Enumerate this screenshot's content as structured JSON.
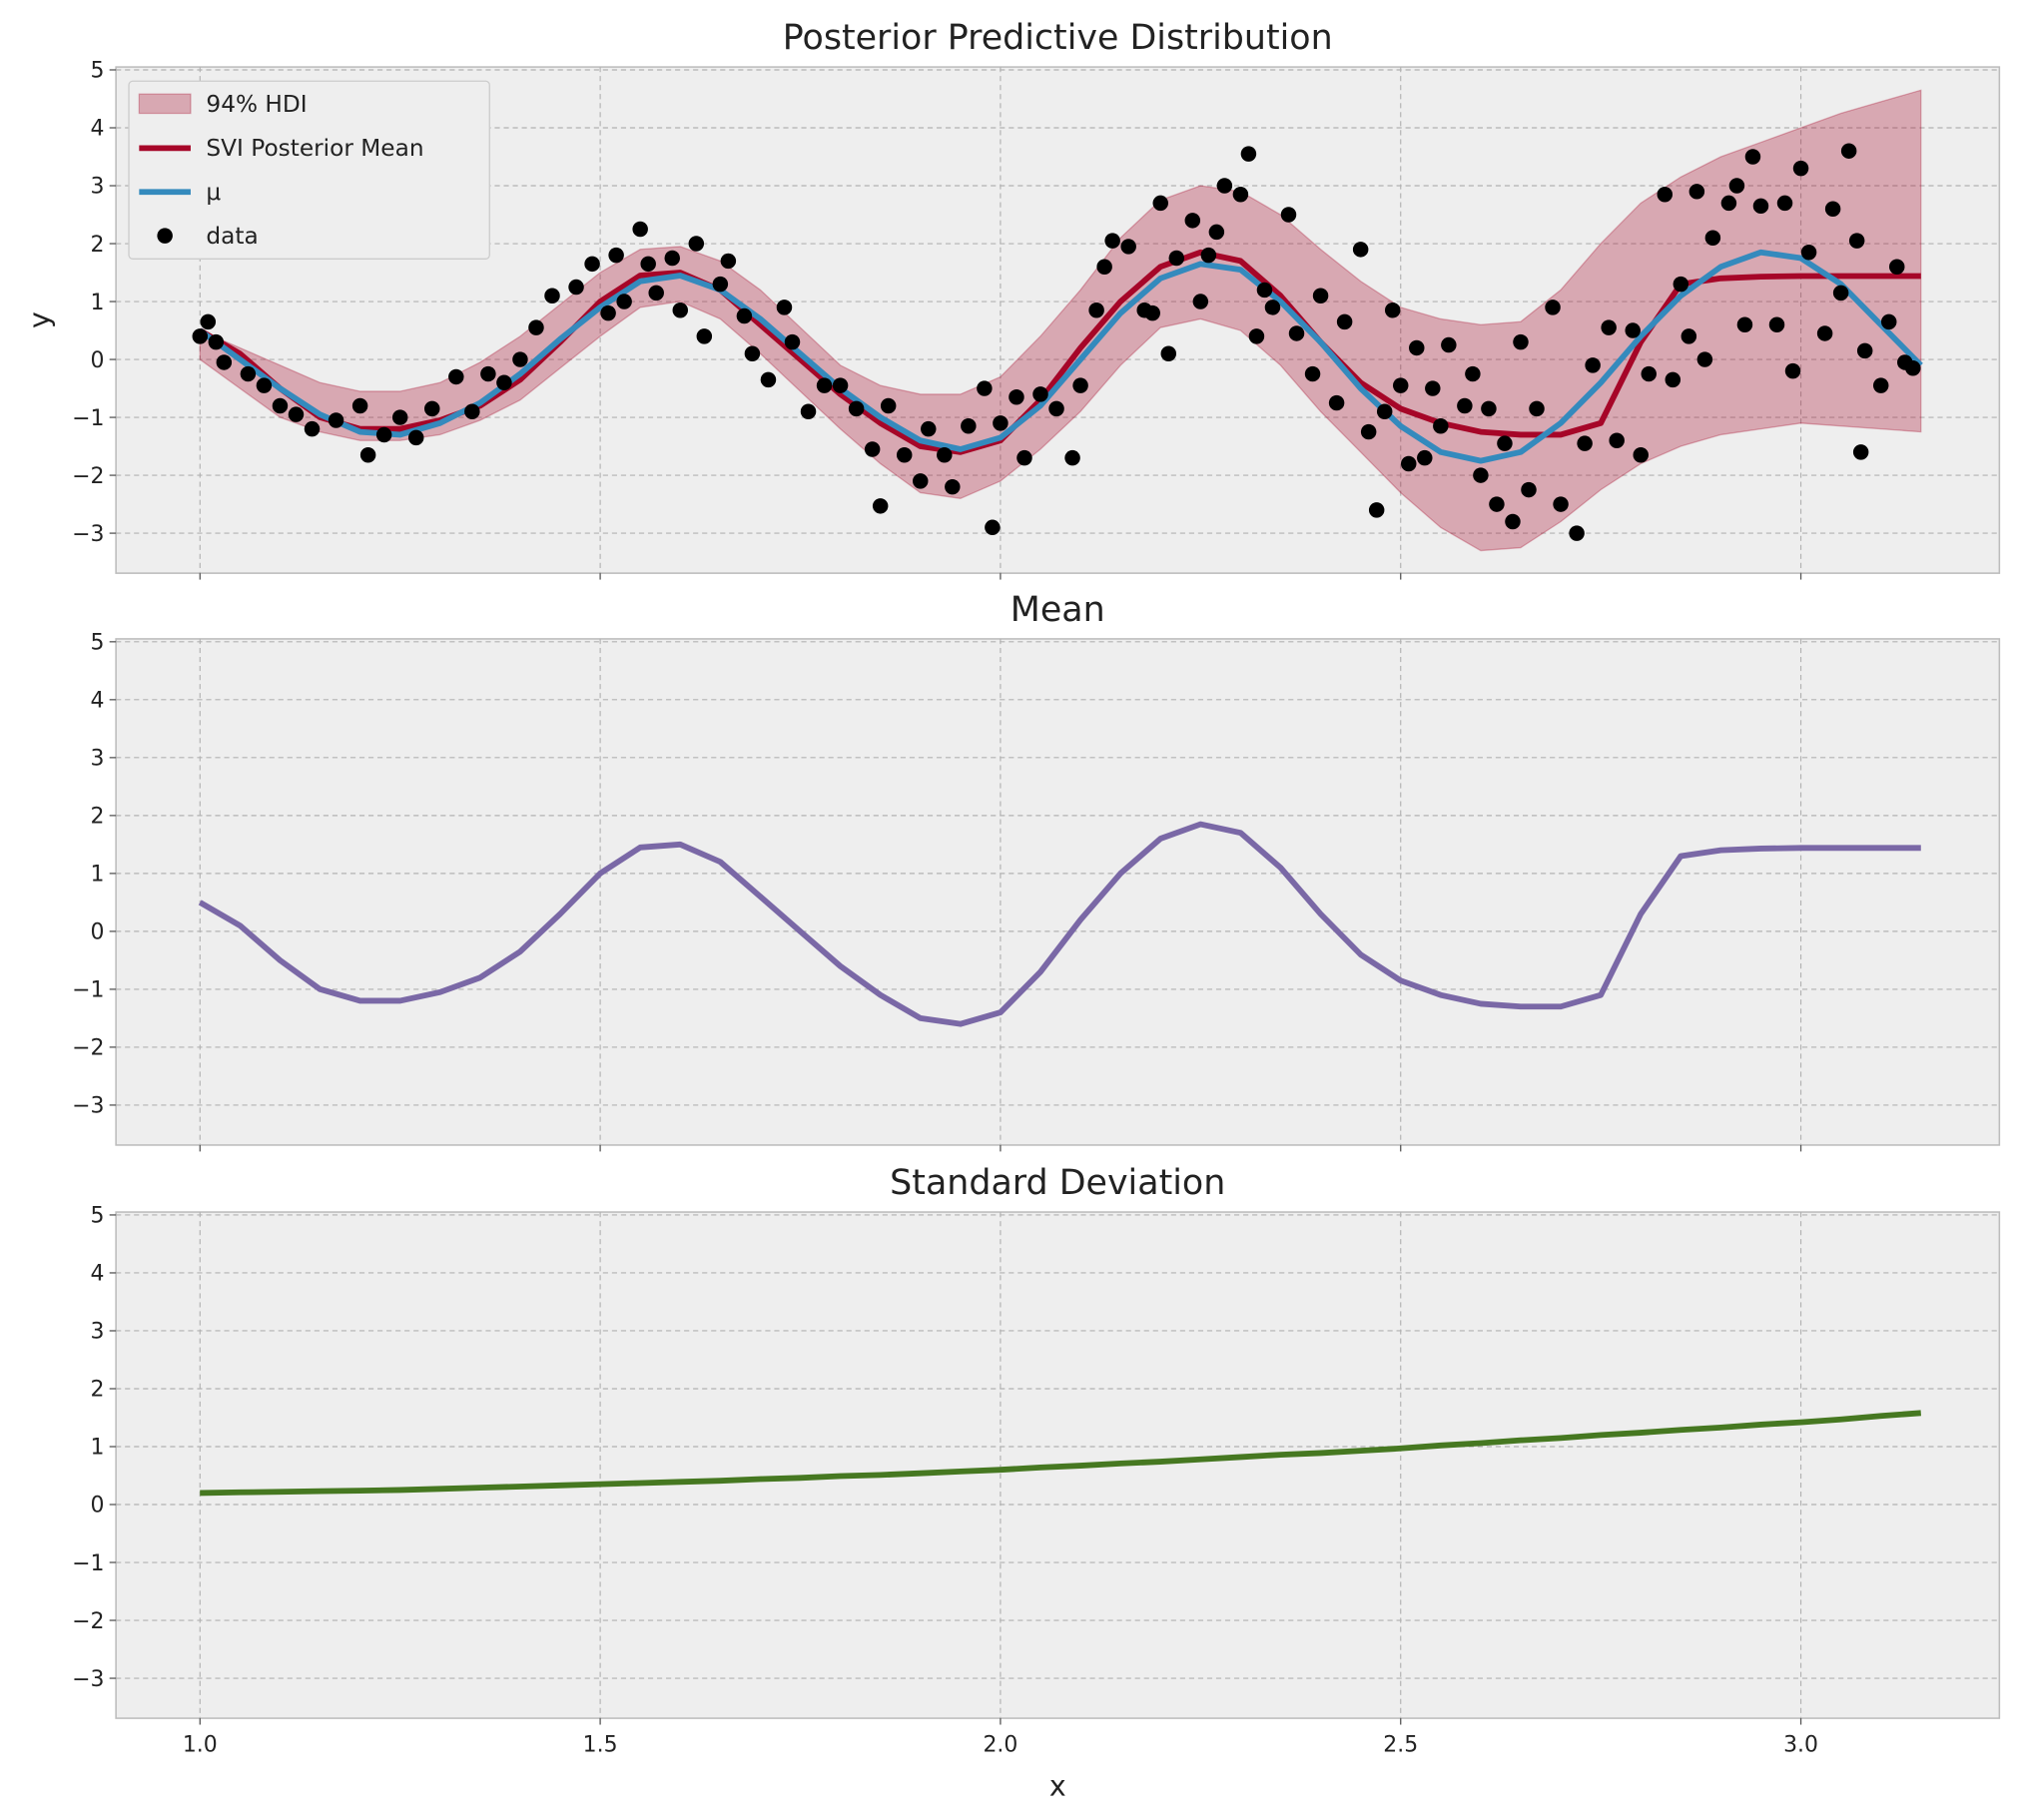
{
  "chart_data": [
    {
      "type": "line",
      "title": "Posterior Predictive Distribution",
      "y_label": "y",
      "xlim": [
        0.895,
        3.248
      ],
      "ylim": [
        -3.69,
        5.05
      ],
      "xticks": [
        1.0,
        1.5,
        2.0,
        2.5,
        3.0
      ],
      "yticks": [
        {
          "value": -3,
          "label": "−3"
        },
        {
          "value": -2,
          "label": "−2"
        },
        {
          "value": -1,
          "label": "−1"
        },
        0,
        1,
        2,
        3,
        4,
        5
      ],
      "grid": true,
      "legend": "upper left",
      "x": [
        1.0,
        1.05,
        1.1,
        1.15,
        1.2,
        1.25,
        1.3,
        1.35,
        1.4,
        1.45,
        1.5,
        1.55,
        1.6,
        1.65,
        1.7,
        1.75,
        1.8,
        1.85,
        1.9,
        1.95,
        2.0,
        2.05,
        2.1,
        2.15,
        2.2,
        2.25,
        2.3,
        2.35,
        2.4,
        2.45,
        2.5,
        2.55,
        2.6,
        2.65,
        2.7,
        2.75,
        2.8,
        2.85,
        2.9,
        2.95,
        3.0,
        3.05,
        3.1,
        3.15
      ],
      "series": [
        {
          "name": "94% HDI",
          "type": "area",
          "color": "#a60628",
          "upper": [
            0.5,
            0.2,
            -0.1,
            -0.4,
            -0.55,
            -0.55,
            -0.4,
            -0.05,
            0.4,
            0.95,
            1.5,
            1.9,
            1.95,
            1.7,
            1.2,
            0.55,
            -0.1,
            -0.45,
            -0.6,
            -0.6,
            -0.3,
            0.4,
            1.2,
            2.1,
            2.75,
            3.0,
            2.9,
            2.5,
            1.9,
            1.35,
            0.9,
            0.7,
            0.6,
            0.65,
            1.2,
            2.0,
            2.7,
            3.15,
            3.5,
            3.75,
            4.0,
            4.25,
            4.45,
            4.65
          ],
          "lower": [
            0.0,
            -0.5,
            -1.0,
            -1.25,
            -1.4,
            -1.4,
            -1.3,
            -1.05,
            -0.7,
            -0.15,
            0.4,
            0.9,
            1.0,
            0.7,
            0.1,
            -0.55,
            -1.2,
            -1.8,
            -2.3,
            -2.4,
            -2.1,
            -1.55,
            -0.9,
            -0.1,
            0.55,
            0.7,
            0.5,
            -0.1,
            -0.9,
            -1.6,
            -2.3,
            -2.9,
            -3.3,
            -3.25,
            -2.8,
            -2.25,
            -1.8,
            -1.5,
            -1.3,
            -1.2,
            -1.1,
            -1.15,
            -1.2,
            -1.25
          ]
        },
        {
          "name": "SVI Posterior Mean",
          "type": "line",
          "color": "#a60628",
          "values": [
            0.5,
            0.1,
            -0.5,
            -1.0,
            -1.2,
            -1.2,
            -1.05,
            -0.8,
            -0.35,
            0.3,
            1.0,
            1.45,
            1.5,
            1.2,
            0.6,
            0.0,
            -0.6,
            -1.1,
            -1.5,
            -1.6,
            -1.4,
            -0.7,
            0.2,
            1.0,
            1.6,
            1.85,
            1.7,
            1.1,
            0.3,
            -0.4,
            -0.85,
            -1.1,
            -1.25,
            -1.3,
            -1.3,
            -1.1,
            0.3,
            1.3,
            1.4,
            1.43,
            1.44,
            1.44,
            1.44,
            1.44
          ]
        },
        {
          "name": "μ",
          "type": "line",
          "color": "#348abd",
          "values": [
            0.5,
            0.0,
            -0.5,
            -0.95,
            -1.25,
            -1.3,
            -1.1,
            -0.75,
            -0.25,
            0.35,
            0.9,
            1.35,
            1.45,
            1.2,
            0.7,
            0.1,
            -0.5,
            -1.0,
            -1.4,
            -1.55,
            -1.35,
            -0.8,
            0.0,
            0.8,
            1.4,
            1.65,
            1.55,
            1.0,
            0.3,
            -0.5,
            -1.15,
            -1.6,
            -1.75,
            -1.6,
            -1.1,
            -0.4,
            0.4,
            1.1,
            1.6,
            1.85,
            1.75,
            1.3,
            0.6,
            -0.1
          ]
        },
        {
          "name": "data",
          "type": "scatter",
          "color": "#000000",
          "x": [
            1.0,
            1.01,
            1.02,
            1.03,
            1.06,
            1.08,
            1.1,
            1.12,
            1.14,
            1.17,
            1.2,
            1.21,
            1.23,
            1.25,
            1.27,
            1.29,
            1.32,
            1.34,
            1.36,
            1.38,
            1.4,
            1.42,
            1.44,
            1.47,
            1.49,
            1.51,
            1.52,
            1.53,
            1.55,
            1.56,
            1.57,
            1.59,
            1.6,
            1.62,
            1.63,
            1.65,
            1.66,
            1.68,
            1.69,
            1.71,
            1.73,
            1.74,
            1.76,
            1.78,
            1.8,
            1.82,
            1.84,
            1.85,
            1.86,
            1.88,
            1.9,
            1.91,
            1.93,
            1.94,
            1.96,
            1.98,
            1.99,
            2.0,
            2.02,
            2.03,
            2.05,
            2.07,
            2.09,
            2.1,
            2.12,
            2.13,
            2.14,
            2.16,
            2.18,
            2.19,
            2.2,
            2.21,
            2.22,
            2.24,
            2.25,
            2.26,
            2.27,
            2.28,
            2.3,
            2.31,
            2.32,
            2.33,
            2.34,
            2.36,
            2.37,
            2.39,
            2.4,
            2.42,
            2.43,
            2.45,
            2.46,
            2.47,
            2.48,
            2.49,
            2.5,
            2.51,
            2.52,
            2.53,
            2.54,
            2.55,
            2.56,
            2.58,
            2.59,
            2.6,
            2.61,
            2.62,
            2.63,
            2.64,
            2.65,
            2.66,
            2.67,
            2.69,
            2.7,
            2.72,
            2.73,
            2.74,
            2.76,
            2.77,
            2.79,
            2.8,
            2.81,
            2.83,
            2.84,
            2.85,
            2.86,
            2.87,
            2.88,
            2.89,
            2.91,
            2.92,
            2.93,
            2.94,
            2.95,
            2.97,
            2.98,
            2.99,
            3.0,
            3.01,
            3.03,
            3.04,
            3.05,
            3.06,
            3.07,
            3.075,
            3.08,
            3.1,
            3.11,
            3.12,
            3.13,
            3.14
          ],
          "values": [
            0.4,
            0.65,
            0.3,
            -0.05,
            -0.25,
            -0.45,
            -0.8,
            -0.95,
            -1.2,
            -1.05,
            -0.8,
            -1.65,
            -1.3,
            -1.0,
            -1.35,
            -0.85,
            -0.3,
            -0.9,
            -0.25,
            -0.4,
            0.0,
            0.55,
            1.1,
            1.25,
            1.65,
            0.8,
            1.8,
            1.0,
            2.25,
            1.65,
            1.15,
            1.75,
            0.85,
            2.0,
            0.4,
            1.3,
            1.7,
            0.75,
            0.1,
            -0.35,
            0.9,
            0.3,
            -0.9,
            -0.45,
            -0.45,
            -0.85,
            -1.55,
            -2.53,
            -0.8,
            -1.65,
            -2.1,
            -1.2,
            -1.65,
            -2.2,
            -1.15,
            -0.5,
            -2.9,
            -1.1,
            -0.65,
            -1.7,
            -0.6,
            -0.85,
            -1.7,
            -0.45,
            0.85,
            1.6,
            2.05,
            1.95,
            0.85,
            0.8,
            2.7,
            0.1,
            1.75,
            2.4,
            1.0,
            1.8,
            2.2,
            3.0,
            2.85,
            3.55,
            0.4,
            1.2,
            0.9,
            2.5,
            0.45,
            -0.25,
            1.1,
            -0.75,
            0.65,
            1.9,
            -1.25,
            -2.6,
            -0.9,
            0.85,
            -0.45,
            -1.8,
            0.2,
            -1.7,
            -0.5,
            -1.15,
            0.25,
            -0.8,
            -0.25,
            -2.0,
            -0.85,
            -2.5,
            -1.45,
            -2.8,
            0.3,
            -2.25,
            -0.85,
            0.9,
            -2.5,
            -3.0,
            -1.45,
            -0.1,
            0.55,
            -1.4,
            0.5,
            -1.65,
            -0.25,
            2.85,
            -0.35,
            1.3,
            0.4,
            2.9,
            0.0,
            2.1,
            2.7,
            3.0,
            0.6,
            3.5,
            2.65,
            0.6,
            2.7,
            -0.2,
            3.3,
            1.85,
            0.45,
            2.6,
            1.15,
            3.6,
            2.05,
            -1.6,
            0.15,
            -0.45,
            0.65,
            1.6,
            -0.05,
            -0.15
          ]
        }
      ]
    },
    {
      "type": "line",
      "title": "Mean",
      "xlim": [
        0.895,
        3.248
      ],
      "ylim": [
        -3.69,
        5.05
      ],
      "xticks": [
        1.0,
        1.5,
        2.0,
        2.5,
        3.0
      ],
      "yticks": [
        {
          "value": -3,
          "label": "−3"
        },
        {
          "value": -2,
          "label": "−2"
        },
        {
          "value": -1,
          "label": "−1"
        },
        0,
        1,
        2,
        3,
        4,
        5
      ],
      "grid": true,
      "color": "#7a68a6",
      "x": [
        1.0,
        1.05,
        1.1,
        1.15,
        1.2,
        1.25,
        1.3,
        1.35,
        1.4,
        1.45,
        1.5,
        1.55,
        1.6,
        1.65,
        1.7,
        1.75,
        1.8,
        1.85,
        1.9,
        1.95,
        2.0,
        2.05,
        2.1,
        2.15,
        2.2,
        2.25,
        2.3,
        2.35,
        2.4,
        2.45,
        2.5,
        2.55,
        2.6,
        2.65,
        2.7,
        2.75,
        2.8,
        2.85,
        2.9,
        2.95,
        3.0,
        3.05,
        3.1,
        3.15
      ],
      "values": [
        0.5,
        0.1,
        -0.5,
        -1.0,
        -1.2,
        -1.2,
        -1.05,
        -0.8,
        -0.35,
        0.3,
        1.0,
        1.45,
        1.5,
        1.2,
        0.6,
        0.0,
        -0.6,
        -1.1,
        -1.5,
        -1.6,
        -1.4,
        -0.7,
        0.2,
        1.0,
        1.6,
        1.85,
        1.7,
        1.1,
        0.3,
        -0.4,
        -0.85,
        -1.1,
        -1.25,
        -1.3,
        -1.3,
        -1.1,
        0.3,
        1.3,
        1.4,
        1.43,
        1.44,
        1.44,
        1.44,
        1.44
      ]
    },
    {
      "type": "line",
      "title": "Standard Deviation",
      "x_label": "x",
      "xlim": [
        0.895,
        3.248
      ],
      "ylim": [
        -3.69,
        5.05
      ],
      "xticks": [
        {
          "value": 1.0,
          "label": "1.0"
        },
        {
          "value": 1.5,
          "label": "1.5"
        },
        {
          "value": 2.0,
          "label": "2.0"
        },
        {
          "value": 2.5,
          "label": "2.5"
        },
        {
          "value": 3.0,
          "label": "3.0"
        }
      ],
      "yticks": [
        {
          "value": -3,
          "label": "−3"
        },
        {
          "value": -2,
          "label": "−2"
        },
        {
          "value": -1,
          "label": "−1"
        },
        0,
        1,
        2,
        3,
        4,
        5
      ],
      "grid": true,
      "color": "#467821",
      "x": [
        1.0,
        1.05,
        1.1,
        1.15,
        1.2,
        1.25,
        1.3,
        1.35,
        1.4,
        1.45,
        1.5,
        1.55,
        1.6,
        1.65,
        1.7,
        1.75,
        1.8,
        1.85,
        1.9,
        1.95,
        2.0,
        2.05,
        2.1,
        2.15,
        2.2,
        2.25,
        2.3,
        2.35,
        2.4,
        2.45,
        2.5,
        2.55,
        2.6,
        2.65,
        2.7,
        2.75,
        2.8,
        2.85,
        2.9,
        2.95,
        3.0,
        3.05,
        3.1,
        3.15
      ],
      "values": [
        0.2,
        0.21,
        0.22,
        0.23,
        0.24,
        0.25,
        0.27,
        0.29,
        0.31,
        0.33,
        0.35,
        0.37,
        0.39,
        0.41,
        0.44,
        0.46,
        0.49,
        0.51,
        0.54,
        0.57,
        0.6,
        0.64,
        0.67,
        0.71,
        0.74,
        0.78,
        0.82,
        0.86,
        0.89,
        0.93,
        0.97,
        1.02,
        1.06,
        1.11,
        1.15,
        1.2,
        1.24,
        1.29,
        1.33,
        1.38,
        1.42,
        1.47,
        1.53,
        1.58
      ]
    }
  ]
}
